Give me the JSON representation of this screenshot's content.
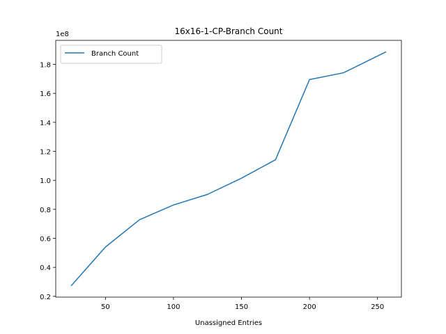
{
  "chart_data": {
    "type": "line",
    "title": "16x16-1-CP-Branch Count",
    "xlabel": "Unassigned Entries",
    "ylabel": "",
    "y_scale_label": "1e8",
    "x": [
      25,
      50,
      75,
      100,
      125,
      150,
      175,
      200,
      225,
      256
    ],
    "series": [
      {
        "name": "Branch Count",
        "color": "#1f77b4",
        "values": [
          27500000,
          54000000,
          72800000,
          83000000,
          90300000,
          101500000,
          114200000,
          169500000,
          174200000,
          188500000
        ]
      }
    ],
    "xlim": [
      13.45,
      267.55
    ],
    "ylim": [
      19450000,
      196550000
    ],
    "xticks": [
      50,
      100,
      150,
      200,
      250
    ],
    "xtick_labels": [
      "50",
      "100",
      "150",
      "200",
      "250"
    ],
    "yticks": [
      20000000,
      40000000,
      60000000,
      80000000,
      100000000,
      120000000,
      140000000,
      160000000,
      180000000
    ],
    "ytick_labels": [
      "0.2",
      "0.4",
      "0.6",
      "0.8",
      "1.0",
      "1.2",
      "1.4",
      "1.6",
      "1.8"
    ],
    "grid": false,
    "legend_position": "upper-left"
  }
}
